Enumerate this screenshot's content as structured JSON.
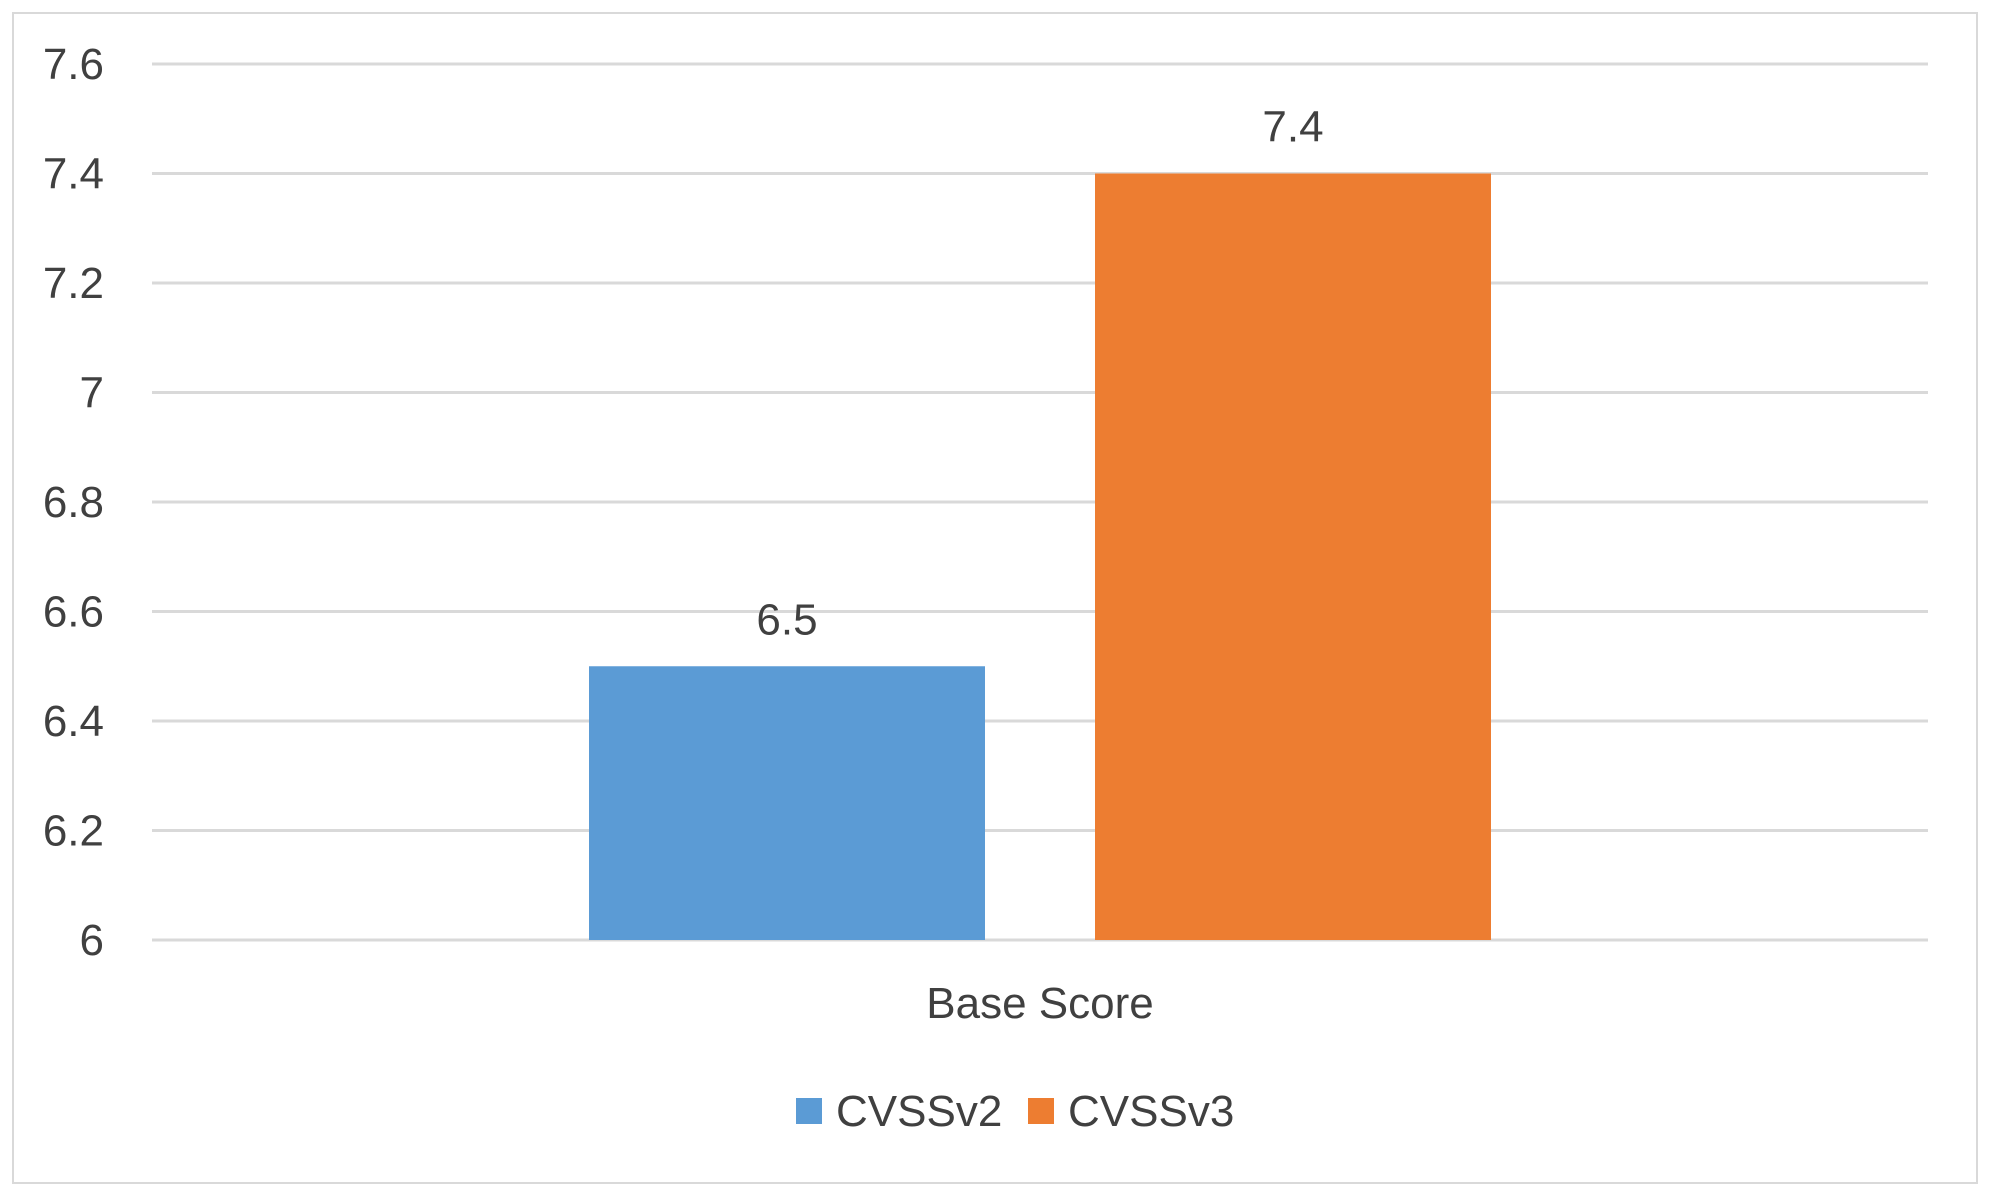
{
  "chart_data": {
    "type": "bar",
    "categories": [
      "Base Score"
    ],
    "series": [
      {
        "name": "CVSSv2",
        "values": [
          6.5
        ],
        "color": "#5B9BD5"
      },
      {
        "name": "CVSSv3",
        "values": [
          7.4
        ],
        "color": "#ED7D31"
      }
    ],
    "data_labels": [
      "6.5",
      "7.4"
    ],
    "ylim": [
      6,
      7.6
    ],
    "yticks": [
      "6",
      "6.2",
      "6.4",
      "6.6",
      "6.8",
      "7",
      "7.2",
      "7.4",
      "7.6"
    ],
    "title": "",
    "xlabel": "",
    "ylabel": "",
    "grid": true,
    "legend_position": "bottom"
  }
}
